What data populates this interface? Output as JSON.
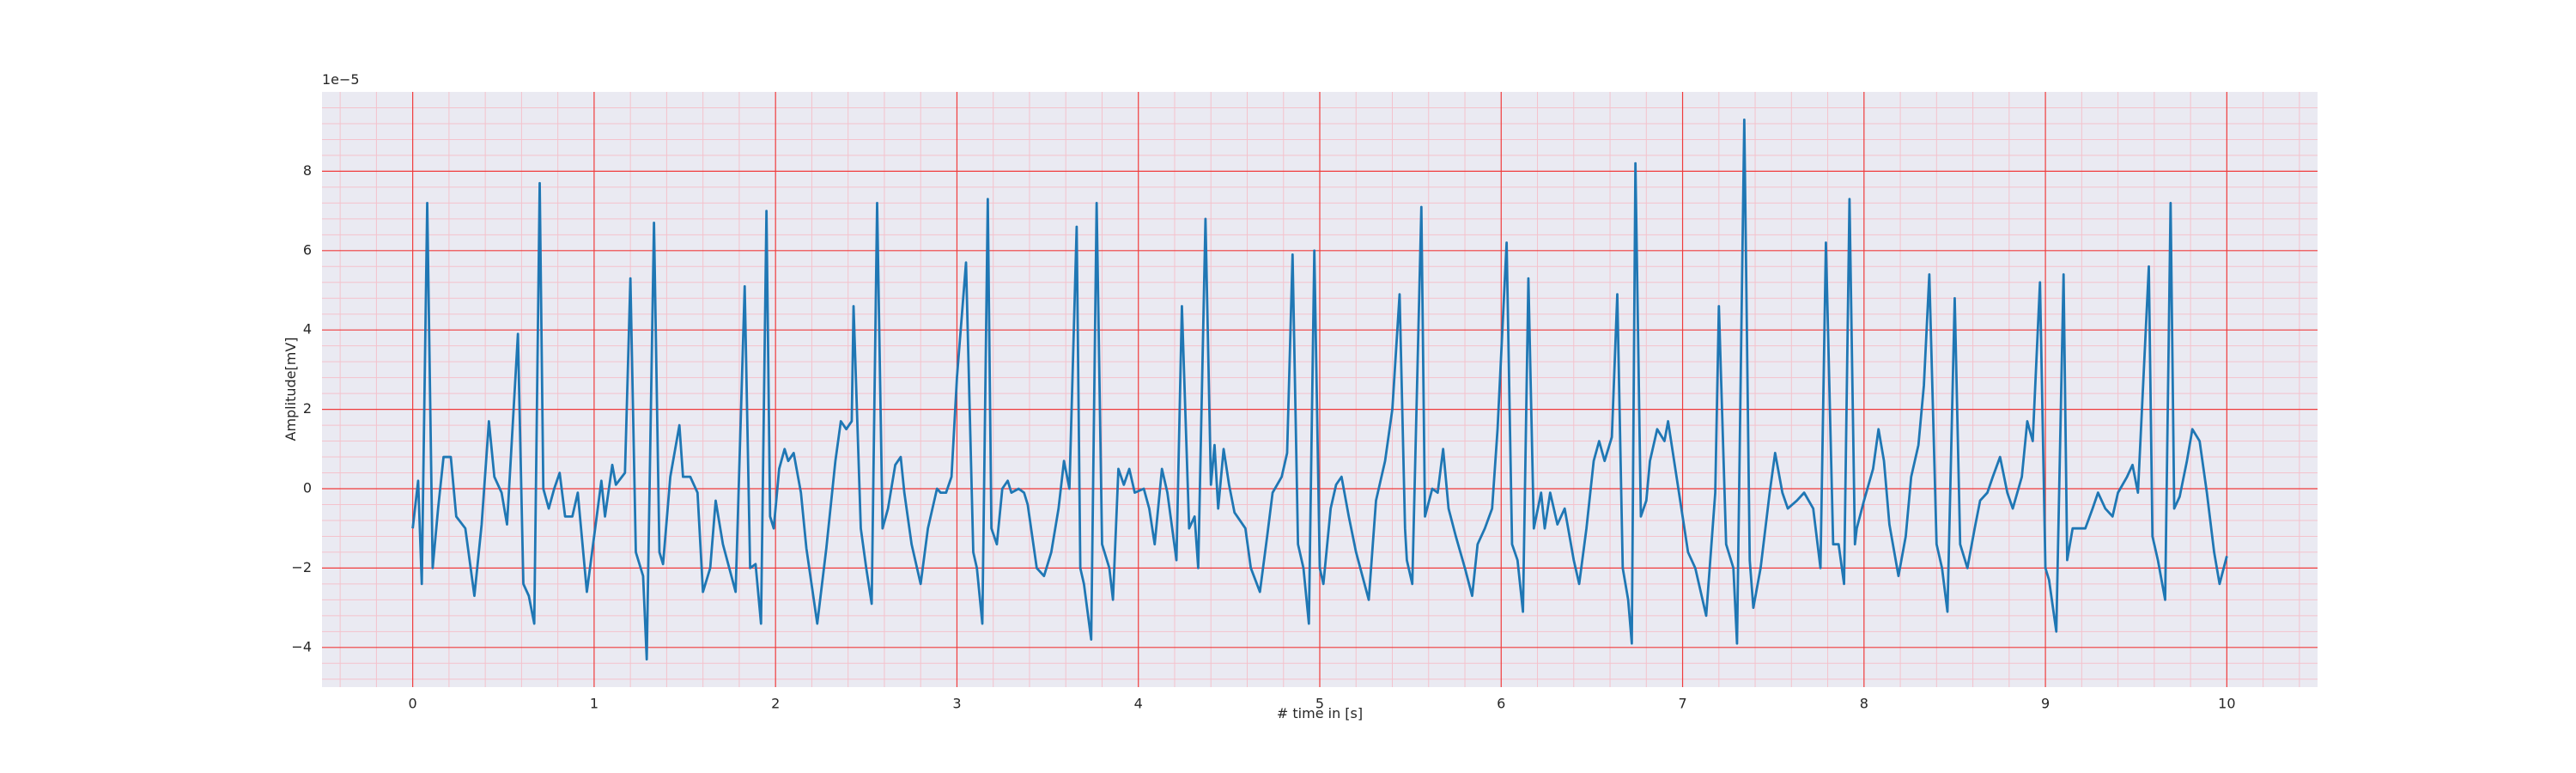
{
  "chart_data": {
    "type": "line",
    "xlabel": "# time in [s]",
    "ylabel": "Amplitude[mV]",
    "y_offset_label": "1e−5",
    "xlim": [
      -0.5,
      10.5
    ],
    "ylim": [
      -5,
      10
    ],
    "xticks": [
      0,
      1,
      2,
      3,
      4,
      5,
      6,
      7,
      8,
      9,
      10
    ],
    "yticks": [
      {
        "value": -4,
        "label": "−4"
      },
      {
        "value": -2,
        "label": "−2"
      },
      0,
      2,
      4,
      6,
      8
    ],
    "xminorticks": [
      -0.4,
      -0.2,
      0.2,
      0.4,
      0.6,
      0.8,
      1.2,
      1.4,
      1.6,
      1.8,
      2.2,
      2.4,
      2.6,
      2.8,
      3.2,
      3.4,
      3.6,
      3.8,
      4.2,
      4.4,
      4.6,
      4.8,
      5.2,
      5.4,
      5.6,
      5.8,
      6.2,
      6.4,
      6.6,
      6.8,
      7.2,
      7.4,
      7.6,
      7.8,
      8.2,
      8.4,
      8.6,
      8.8,
      9.2,
      9.4,
      9.6,
      9.8,
      10.2,
      10.4
    ],
    "yminorticks": [
      -4.8,
      -4.4,
      -3.6,
      -3.2,
      -2.8,
      -2.4,
      -1.6,
      -1.2,
      -0.8,
      -0.4,
      0.4,
      0.8,
      1.2,
      1.6,
      2.4,
      2.8,
      3.2,
      3.6,
      4.4,
      4.8,
      5.2,
      5.6,
      6.4,
      6.8,
      7.2,
      7.6,
      8.4,
      8.8,
      9.2,
      9.6
    ],
    "grid": true,
    "x": [
      0.0,
      0.03,
      0.05,
      0.08,
      0.11,
      0.14,
      0.17,
      0.21,
      0.24,
      0.29,
      0.34,
      0.38,
      0.42,
      0.45,
      0.49,
      0.52,
      0.58,
      0.61,
      0.64,
      0.67,
      0.7,
      0.72,
      0.75,
      0.78,
      0.81,
      0.84,
      0.88,
      0.91,
      0.96,
      1.0,
      1.04,
      1.06,
      1.1,
      1.12,
      1.17,
      1.2,
      1.23,
      1.27,
      1.29,
      1.33,
      1.36,
      1.38,
      1.42,
      1.47,
      1.49,
      1.53,
      1.57,
      1.6,
      1.64,
      1.67,
      1.71,
      1.78,
      1.83,
      1.86,
      1.89,
      1.92,
      1.95,
      1.97,
      1.99,
      2.02,
      2.05,
      2.07,
      2.1,
      2.14,
      2.17,
      2.23,
      2.28,
      2.33,
      2.36,
      2.39,
      2.42,
      2.43,
      2.47,
      2.5,
      2.53,
      2.56,
      2.59,
      2.62,
      2.66,
      2.69,
      2.71,
      2.75,
      2.8,
      2.84,
      2.89,
      2.91,
      2.94,
      2.97,
      3.0,
      3.05,
      3.09,
      3.11,
      3.14,
      3.17,
      3.19,
      3.22,
      3.25,
      3.28,
      3.3,
      3.34,
      3.37,
      3.39,
      3.44,
      3.48,
      3.52,
      3.56,
      3.59,
      3.62,
      3.66,
      3.68,
      3.7,
      3.74,
      3.77,
      3.8,
      3.84,
      3.86,
      3.89,
      3.92,
      3.95,
      3.98,
      4.03,
      4.06,
      4.09,
      4.13,
      4.16,
      4.21,
      4.24,
      4.28,
      4.31,
      4.33,
      4.37,
      4.4,
      4.42,
      4.44,
      4.47,
      4.5,
      4.53,
      4.59,
      4.62,
      4.67,
      4.71,
      4.74,
      4.79,
      4.82,
      4.85,
      4.88,
      4.91,
      4.94,
      4.97,
      5.0,
      5.02,
      5.06,
      5.09,
      5.12,
      5.16,
      5.2,
      5.27,
      5.31,
      5.36,
      5.4,
      5.44,
      5.47,
      5.48,
      5.51,
      5.56,
      5.58,
      5.62,
      5.65,
      5.68,
      5.71,
      5.75,
      5.8,
      5.84,
      5.87,
      5.91,
      5.95,
      5.98,
      6.03,
      6.06,
      6.09,
      6.12,
      6.15,
      6.18,
      6.22,
      6.24,
      6.27,
      6.31,
      6.35,
      6.4,
      6.43,
      6.47,
      6.51,
      6.54,
      6.57,
      6.61,
      6.64,
      6.67,
      6.7,
      6.72,
      6.74,
      6.77,
      6.8,
      6.82,
      6.86,
      6.9,
      6.92,
      6.96,
      7.0,
      7.03,
      7.07,
      7.13,
      7.18,
      7.2,
      7.24,
      7.28,
      7.3,
      7.34,
      7.37,
      7.39,
      7.43,
      7.48,
      7.51,
      7.55,
      7.58,
      7.63,
      7.67,
      7.72,
      7.76,
      7.79,
      7.83,
      7.86,
      7.89,
      7.92,
      7.95,
      7.96,
      8.0,
      8.05,
      8.08,
      8.11,
      8.14,
      8.19,
      8.23,
      8.26,
      8.3,
      8.33,
      8.36,
      8.4,
      8.43,
      8.46,
      8.5,
      8.53,
      8.57,
      8.61,
      8.64,
      8.68,
      8.71,
      8.75,
      8.79,
      8.82,
      8.87,
      8.9,
      8.93,
      8.97,
      9.0,
      9.02,
      9.06,
      9.1,
      9.12,
      9.15,
      9.19,
      9.22,
      9.26,
      9.29,
      9.33,
      9.37,
      9.4,
      9.45,
      9.48,
      9.51,
      9.57,
      9.59,
      9.62,
      9.66,
      9.69,
      9.71,
      9.74,
      9.78,
      9.81,
      9.85,
      9.89,
      9.93,
      9.96,
      10.0
    ],
    "series": [
      {
        "color": "#1f77b4",
        "values": [
          -1.0,
          0.2,
          -2.4,
          7.2,
          -2.0,
          -0.5,
          0.8,
          0.8,
          -0.7,
          -1.0,
          -2.7,
          -0.9,
          1.7,
          0.3,
          -0.1,
          -0.9,
          3.9,
          -2.4,
          -2.7,
          -3.4,
          7.7,
          0.0,
          -0.5,
          0.0,
          0.4,
          -0.7,
          -0.7,
          -0.1,
          -2.6,
          -1.2,
          0.2,
          -0.7,
          0.6,
          0.1,
          0.4,
          5.3,
          -1.6,
          -2.2,
          -4.3,
          6.7,
          -1.6,
          -1.9,
          0.3,
          1.6,
          0.3,
          0.3,
          -0.1,
          -2.6,
          -2.0,
          -0.3,
          -1.4,
          -2.6,
          5.1,
          -2.0,
          -1.9,
          -3.4,
          7.0,
          -0.7,
          -1.0,
          0.5,
          1.0,
          0.7,
          0.9,
          -0.1,
          -1.5,
          -3.4,
          -1.5,
          0.7,
          1.7,
          1.5,
          1.7,
          4.6,
          -1.0,
          -2.0,
          -2.9,
          7.2,
          -1.0,
          -0.5,
          0.6,
          0.8,
          -0.1,
          -1.4,
          -2.4,
          -1.0,
          0.0,
          -0.1,
          -0.1,
          0.3,
          2.8,
          5.7,
          -1.6,
          -2.0,
          -3.4,
          7.3,
          -1.0,
          -1.4,
          0.0,
          0.2,
          -0.1,
          0.0,
          -0.1,
          -0.4,
          -2.0,
          -2.2,
          -1.6,
          -0.5,
          0.7,
          0.0,
          6.6,
          -2.0,
          -2.4,
          -3.8,
          7.2,
          -1.4,
          -2.0,
          -2.8,
          0.5,
          0.1,
          0.5,
          -0.1,
          0.0,
          -0.5,
          -1.4,
          0.5,
          -0.1,
          -1.8,
          4.6,
          -1.0,
          -0.7,
          -2.0,
          6.8,
          0.1,
          1.1,
          -0.5,
          1.0,
          0.1,
          -0.6,
          -1.0,
          -2.0,
          -2.6,
          -1.2,
          -0.1,
          0.3,
          0.9,
          5.9,
          -1.4,
          -2.0,
          -3.4,
          6.0,
          -2.0,
          -2.4,
          -0.5,
          0.1,
          0.3,
          -0.7,
          -1.6,
          -2.8,
          -0.3,
          0.7,
          2.0,
          4.9,
          -1.0,
          -1.8,
          -2.4,
          7.1,
          -0.7,
          0.0,
          -0.1,
          1.0,
          -0.5,
          -1.2,
          -2.0,
          -2.7,
          -1.4,
          -1.0,
          -0.5,
          1.5,
          6.2,
          -1.4,
          -1.8,
          -3.1,
          5.3,
          -1.0,
          -0.1,
          -1.0,
          -0.1,
          -0.9,
          -0.5,
          -1.8,
          -2.4,
          -1.0,
          0.7,
          1.2,
          0.7,
          1.3,
          4.9,
          -2.0,
          -2.8,
          -3.9,
          8.2,
          -0.7,
          -0.3,
          0.7,
          1.5,
          1.2,
          1.7,
          0.5,
          -0.7,
          -1.6,
          -2.0,
          -3.2,
          -0.1,
          4.6,
          -1.4,
          -2.0,
          -3.9,
          9.3,
          -1.8,
          -3.0,
          -2.0,
          -0.1,
          0.9,
          -0.1,
          -0.5,
          -0.3,
          -0.1,
          -0.5,
          -2.0,
          6.2,
          -1.4,
          -1.4,
          -2.4,
          7.3,
          -1.4,
          -1.0,
          -0.3,
          0.5,
          1.5,
          0.7,
          -0.9,
          -2.2,
          -1.2,
          0.3,
          1.1,
          2.6,
          5.4,
          -1.4,
          -2.0,
          -3.1,
          4.8,
          -1.4,
          -2.0,
          -1.0,
          -0.3,
          -0.1,
          0.3,
          0.8,
          -0.1,
          -0.5,
          0.3,
          1.7,
          1.2,
          5.2,
          -2.0,
          -2.3,
          -3.6,
          5.4,
          -1.8,
          -1.0,
          -1.0,
          -1.0,
          -0.5,
          -0.1,
          -0.5,
          -0.7,
          -0.1,
          0.3,
          0.6,
          -0.1,
          5.6,
          -1.2,
          -1.8,
          -2.8,
          7.2,
          -0.5,
          -0.2,
          0.7,
          1.5,
          1.2,
          -0.1,
          -1.6,
          -2.4,
          -1.7
        ]
      }
    ]
  }
}
